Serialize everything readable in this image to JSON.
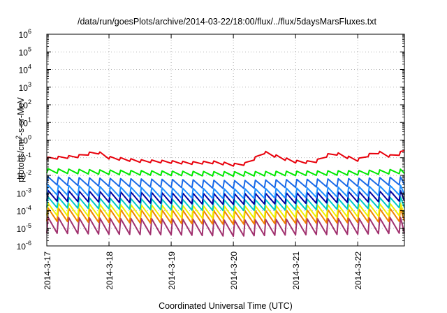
{
  "chart_data": {
    "type": "line",
    "title": "/data/run/goesPlots/archive/2014-03-22/18:00/flux/../flux/5daysMarsFluxes.txt",
    "xlabel": "Coordinated Universal Time (UTC)",
    "ylabel": "protons/cm²-s-sr-MeV",
    "ylabel_parts": {
      "before": "protons/cm",
      "sup": "2",
      "after": "-s-sr-MeV"
    },
    "yscale": "log",
    "ylim_exponents": [
      -6,
      6
    ],
    "y_tick_base": "10",
    "y_tick_exponents": [
      "-6",
      "-5",
      "-4",
      "-3",
      "-2",
      "-1",
      "0",
      "1",
      "2",
      "3",
      "4",
      "5",
      "6"
    ],
    "xlim": [
      "2014-03-17 00:00",
      "2014-03-22 18:00"
    ],
    "x_tick_labels": [
      "2014-3-17",
      "2014-3-18",
      "2014-3-19",
      "2014-3-20",
      "2014-3-21",
      "2014-3-22"
    ],
    "grid": true,
    "legend": "none",
    "cycle_hours": 4,
    "series": [
      {
        "color": "#e8000b",
        "anchors_days": [
          0,
          0.5,
          0.8,
          1.0,
          1.5,
          1.9,
          2.3,
          2.7,
          3.0,
          3.2,
          3.5,
          3.8,
          4.0,
          4.3,
          4.6,
          4.9,
          5.0,
          5.3,
          5.6,
          5.75
        ],
        "anchors_values": [
          0.09,
          0.12,
          0.22,
          0.1,
          0.065,
          0.06,
          0.05,
          0.055,
          0.04,
          0.045,
          0.2,
          0.09,
          0.06,
          0.055,
          0.2,
          0.09,
          0.075,
          0.22,
          0.1,
          0.3
        ],
        "sawtooth_amplitude_decades": 0.15
      },
      {
        "color": "#00e800",
        "anchors_days": [
          0,
          1,
          2,
          3,
          4,
          5,
          5.75
        ],
        "anchors_values": [
          0.018,
          0.015,
          0.013,
          0.012,
          0.013,
          0.014,
          0.017
        ],
        "sawtooth_amplitude_decades": 0.25
      },
      {
        "color": "#1a6be8",
        "anchors_days": [
          0,
          1,
          2,
          3,
          4,
          5,
          5.75
        ],
        "anchors_values": [
          0.005,
          0.004,
          0.0035,
          0.003,
          0.0035,
          0.004,
          0.005
        ],
        "sawtooth_amplitude_decades": 0.45
      },
      {
        "color": "#1e90ff",
        "anchors_days": [
          0,
          1,
          2,
          3,
          4,
          5,
          5.75
        ],
        "anchors_values": [
          0.0015,
          0.0012,
          0.001,
          0.0009,
          0.001,
          0.0012,
          0.0015
        ],
        "sawtooth_amplitude_decades": 0.55
      },
      {
        "color": "#0000a0",
        "anchors_days": [
          0,
          1,
          2,
          3,
          4,
          5,
          5.75
        ],
        "anchors_values": [
          0.0007,
          0.0006,
          0.0005,
          0.00045,
          0.0005,
          0.0006,
          0.0007
        ],
        "sawtooth_amplitude_decades": 0.6
      },
      {
        "color": "#00c8c8",
        "anchors_days": [
          0,
          1,
          2,
          3,
          4,
          5,
          5.75
        ],
        "anchors_values": [
          0.0003,
          0.00025,
          0.00022,
          0.0002,
          0.00022,
          0.00025,
          0.0003
        ],
        "sawtooth_amplitude_decades": 0.6
      },
      {
        "color": "#f0f000",
        "anchors_days": [
          0,
          1,
          2,
          3,
          4,
          5,
          5.75
        ],
        "anchors_values": [
          0.00012,
          0.0001,
          9e-05,
          8e-05,
          9e-05,
          0.0001,
          0.00012
        ],
        "sawtooth_amplitude_decades": 0.7
      },
      {
        "color": "#f08000",
        "anchors_days": [
          0,
          1,
          2,
          3,
          4,
          5,
          5.75
        ],
        "anchors_values": [
          6e-05,
          5e-05,
          4.5e-05,
          4e-05,
          4.5e-05,
          5e-05,
          6e-05
        ],
        "sawtooth_amplitude_decades": 0.75
      },
      {
        "color": "#a0306e",
        "anchors_days": [
          0,
          1,
          2,
          3,
          4,
          5,
          5.75
        ],
        "anchors_values": [
          1.5e-05,
          1.3e-05,
          1.2e-05,
          1e-05,
          1.2e-05,
          1.3e-05,
          1.5e-05
        ],
        "sawtooth_amplitude_decades": 0.9
      }
    ]
  }
}
